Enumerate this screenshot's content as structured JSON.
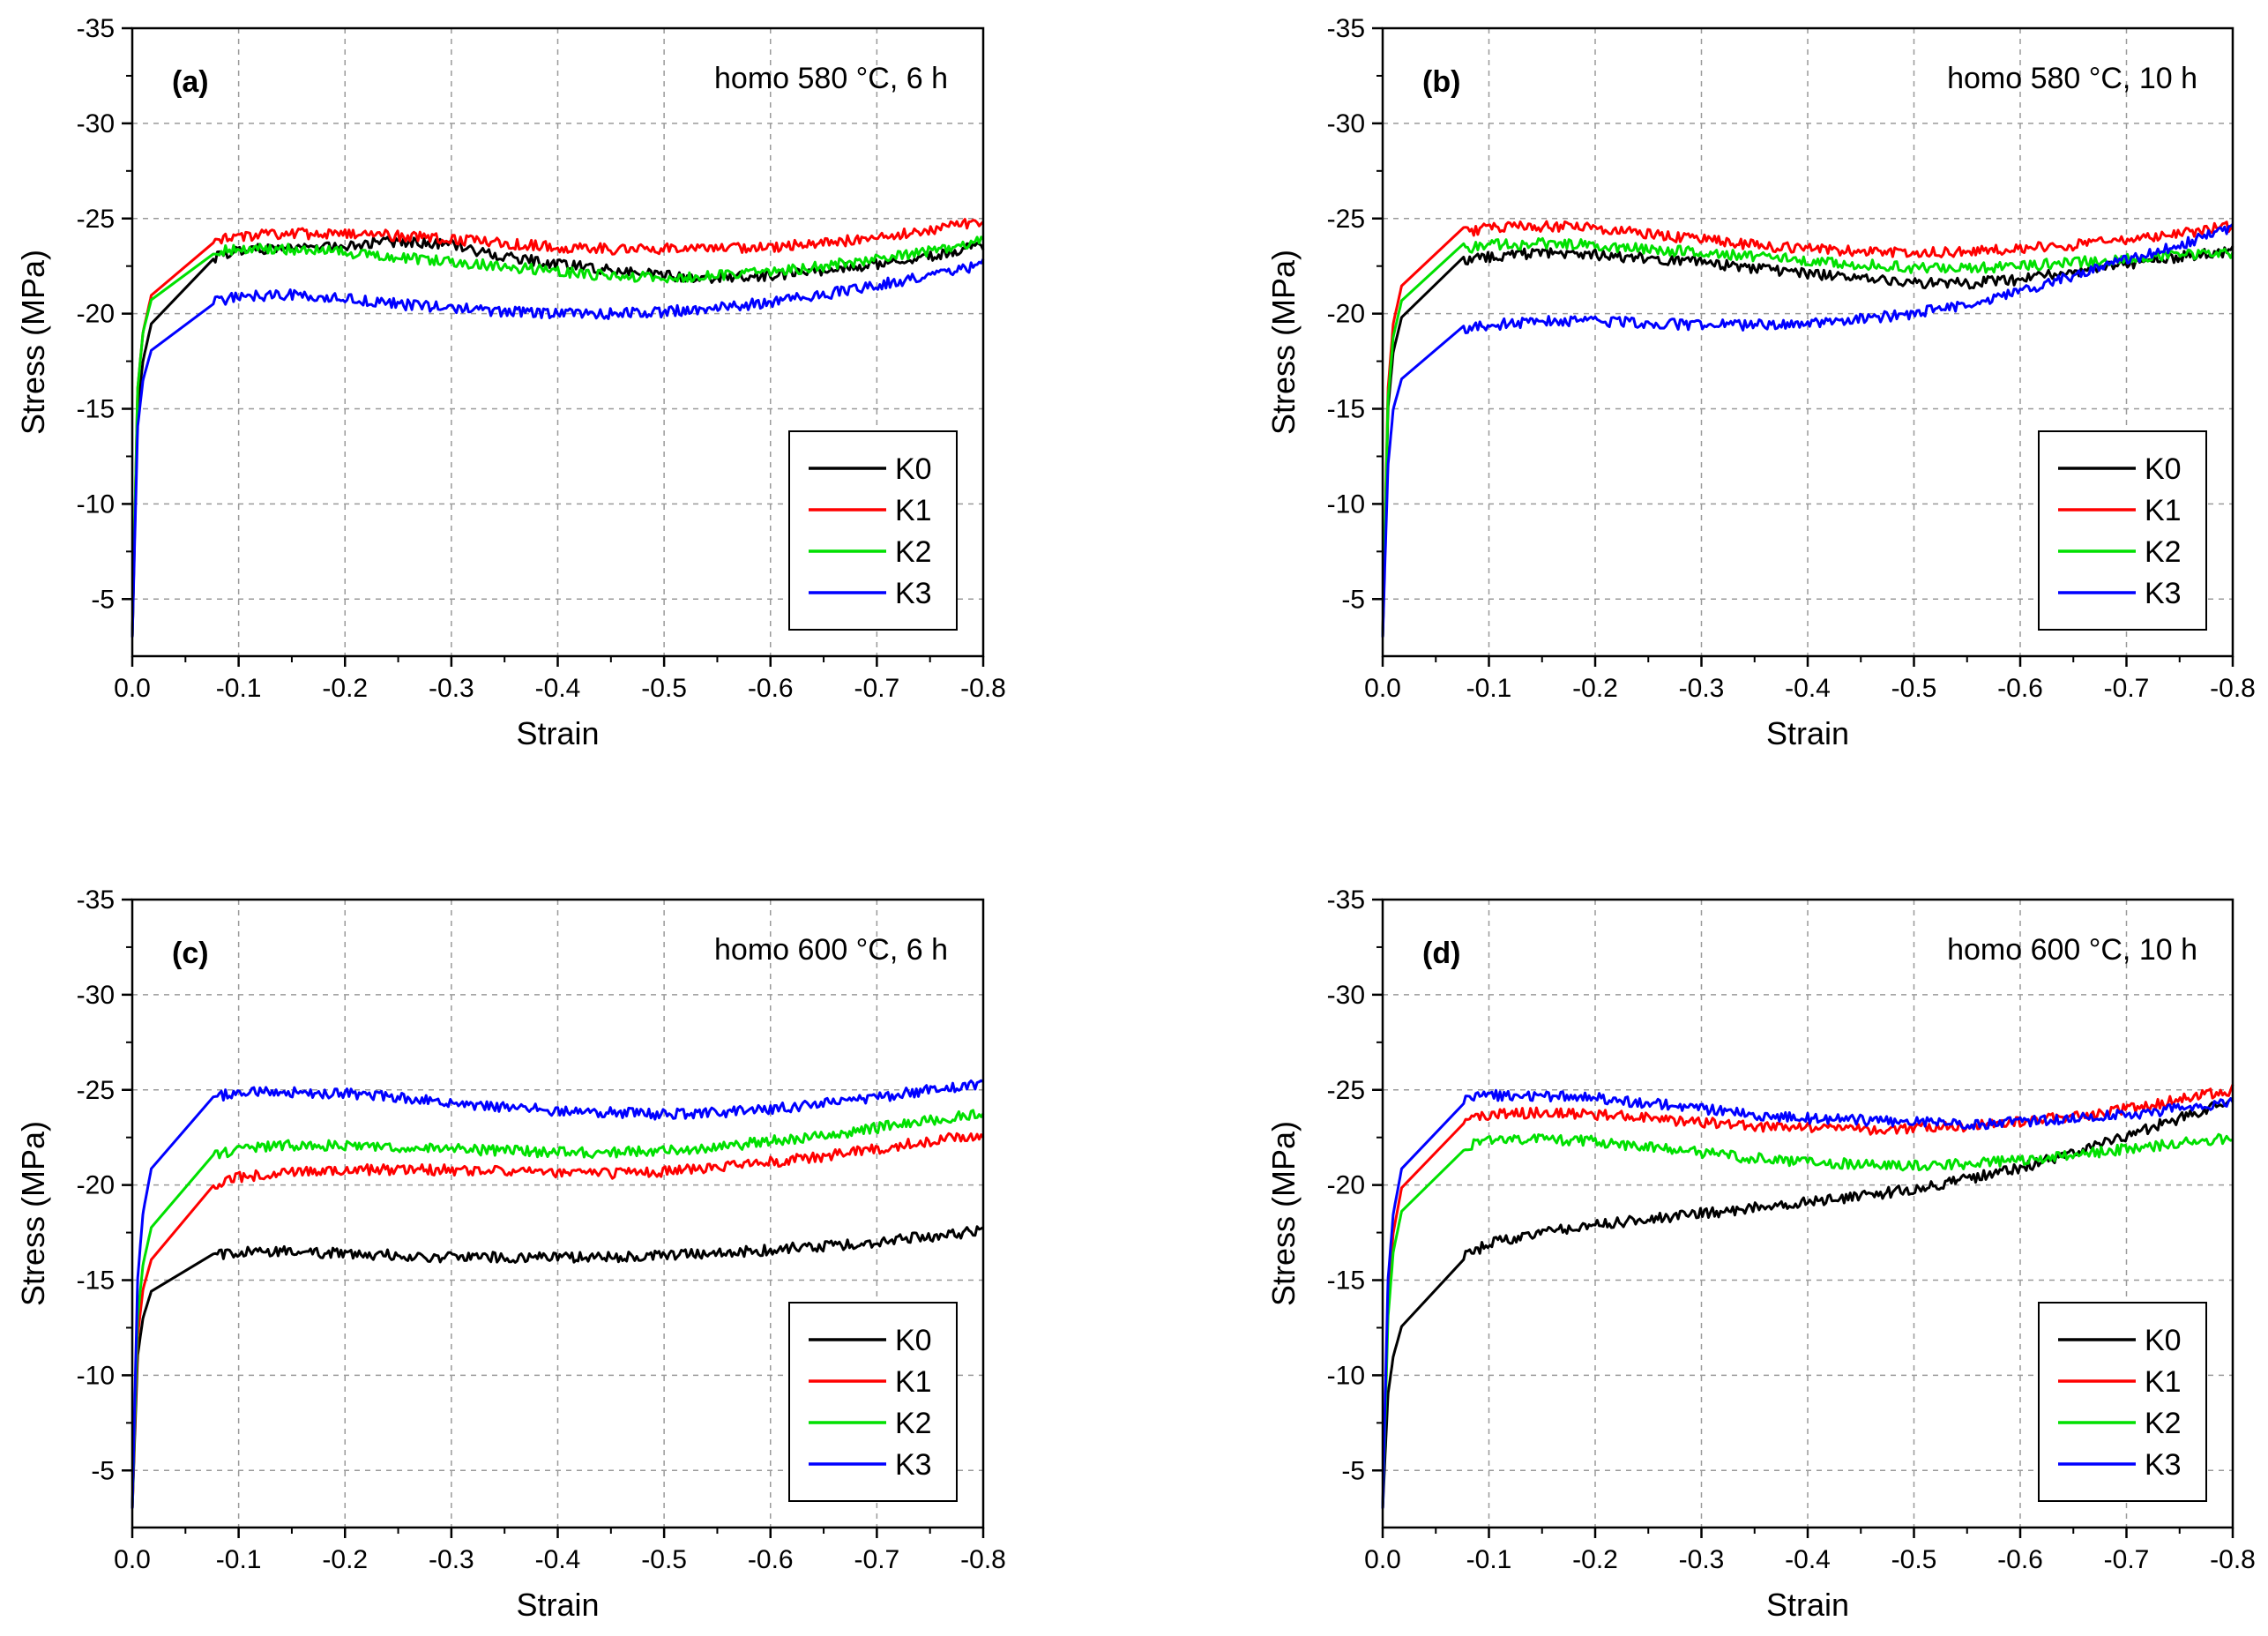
{
  "chart_data": [
    {
      "type": "line",
      "panel_label": "(a)",
      "condition": "homo 580 °C, 6 h",
      "xlabel": "Strain",
      "ylabel": "Stress (MPa)",
      "xlim": [
        0.0,
        -0.8
      ],
      "ylim": [
        -2,
        -35
      ],
      "xticks": [
        "0.0",
        "-0.1",
        "-0.2",
        "-0.3",
        "-0.4",
        "-0.5",
        "-0.6",
        "-0.7",
        "-0.8"
      ],
      "yticks": [
        "-5",
        "-10",
        "-15",
        "-20",
        "-25",
        "-30",
        "-35"
      ],
      "grid": true,
      "legend_position": "bottom-right",
      "series": [
        {
          "name": "K0",
          "color": "#000000",
          "x": [
            0,
            -0.005,
            -0.01,
            -0.02,
            -0.04,
            -0.06,
            -0.1,
            -0.15,
            -0.2,
            -0.25,
            -0.3,
            -0.35,
            -0.4,
            -0.45,
            -0.5,
            -0.55,
            -0.6,
            -0.65,
            -0.7,
            -0.75,
            -0.8
          ],
          "y": [
            -3,
            -15,
            -17.5,
            -20,
            -21.8,
            -22.7,
            -23.3,
            -23.5,
            -23.6,
            -23.8,
            -23.6,
            -23.0,
            -22.6,
            -22.3,
            -22.0,
            -21.9,
            -22.0,
            -22.3,
            -22.6,
            -23.0,
            -23.6
          ]
        },
        {
          "name": "K1",
          "color": "#ff0000",
          "x": [
            0,
            -0.005,
            -0.01,
            -0.02,
            -0.04,
            -0.06,
            -0.1,
            -0.15,
            -0.2,
            -0.25,
            -0.3,
            -0.35,
            -0.4,
            -0.45,
            -0.5,
            -0.55,
            -0.6,
            -0.65,
            -0.7,
            -0.75,
            -0.8
          ],
          "y": [
            -3,
            -16,
            -19,
            -21.5,
            -23.0,
            -23.6,
            -24.1,
            -24.2,
            -24.2,
            -24.1,
            -23.9,
            -23.7,
            -23.5,
            -23.4,
            -23.4,
            -23.4,
            -23.5,
            -23.7,
            -24.0,
            -24.4,
            -24.9
          ]
        },
        {
          "name": "K2",
          "color": "#00e000",
          "x": [
            0,
            -0.005,
            -0.01,
            -0.02,
            -0.04,
            -0.06,
            -0.1,
            -0.15,
            -0.2,
            -0.25,
            -0.3,
            -0.35,
            -0.4,
            -0.45,
            -0.5,
            -0.55,
            -0.6,
            -0.65,
            -0.7,
            -0.75,
            -0.8
          ],
          "y": [
            -3,
            -16,
            -19,
            -21.2,
            -22.6,
            -23.1,
            -23.4,
            -23.4,
            -23.2,
            -23.0,
            -22.7,
            -22.5,
            -22.2,
            -22.0,
            -21.9,
            -22.0,
            -22.2,
            -22.5,
            -22.9,
            -23.3,
            -23.8
          ]
        },
        {
          "name": "K3",
          "color": "#0000ff",
          "x": [
            0,
            -0.005,
            -0.01,
            -0.02,
            -0.04,
            -0.06,
            -0.1,
            -0.15,
            -0.2,
            -0.25,
            -0.3,
            -0.35,
            -0.4,
            -0.45,
            -0.5,
            -0.55,
            -0.6,
            -0.65,
            -0.7,
            -0.75,
            -0.8
          ],
          "y": [
            -3,
            -14,
            -16.5,
            -18.5,
            -19.8,
            -20.4,
            -20.9,
            -21.0,
            -20.8,
            -20.5,
            -20.3,
            -20.1,
            -20.0,
            -20.0,
            -20.1,
            -20.3,
            -20.6,
            -21.0,
            -21.5,
            -22.0,
            -22.6
          ]
        }
      ]
    },
    {
      "type": "line",
      "panel_label": "(b)",
      "condition": "homo 580 °C, 10 h",
      "xlabel": "Strain",
      "ylabel": "Stress (MPa)",
      "xlim": [
        0.0,
        -0.8
      ],
      "ylim": [
        -2,
        -35
      ],
      "xticks": [
        "0.0",
        "-0.1",
        "-0.2",
        "-0.3",
        "-0.4",
        "-0.5",
        "-0.6",
        "-0.7",
        "-0.8"
      ],
      "yticks": [
        "-5",
        "-10",
        "-15",
        "-20",
        "-25",
        "-30",
        "-35"
      ],
      "grid": true,
      "legend_position": "bottom-right",
      "series": [
        {
          "name": "K0",
          "color": "#000000",
          "x": [
            0,
            -0.005,
            -0.01,
            -0.02,
            -0.04,
            -0.06,
            -0.1,
            -0.15,
            -0.2,
            -0.25,
            -0.3,
            -0.35,
            -0.4,
            -0.45,
            -0.5,
            -0.55,
            -0.6,
            -0.65,
            -0.7,
            -0.75,
            -0.8
          ],
          "y": [
            -3,
            -15,
            -18,
            -20.3,
            -21.8,
            -22.5,
            -23.0,
            -23.2,
            -23.1,
            -22.9,
            -22.7,
            -22.4,
            -22.1,
            -21.8,
            -21.6,
            -21.6,
            -21.8,
            -22.2,
            -22.6,
            -23.0,
            -23.3
          ]
        },
        {
          "name": "K1",
          "color": "#ff0000",
          "x": [
            0,
            -0.005,
            -0.01,
            -0.02,
            -0.04,
            -0.06,
            -0.1,
            -0.15,
            -0.2,
            -0.25,
            -0.3,
            -0.35,
            -0.4,
            -0.45,
            -0.5,
            -0.55,
            -0.6,
            -0.65,
            -0.7,
            -0.75,
            -0.8
          ],
          "y": [
            -3,
            -16,
            -19.5,
            -22,
            -23.6,
            -24.1,
            -24.5,
            -24.6,
            -24.5,
            -24.2,
            -23.9,
            -23.6,
            -23.4,
            -23.3,
            -23.2,
            -23.3,
            -23.4,
            -23.6,
            -23.9,
            -24.2,
            -24.6
          ]
        },
        {
          "name": "K2",
          "color": "#00e000",
          "x": [
            0,
            -0.005,
            -0.01,
            -0.02,
            -0.04,
            -0.06,
            -0.1,
            -0.15,
            -0.2,
            -0.25,
            -0.3,
            -0.35,
            -0.4,
            -0.45,
            -0.5,
            -0.55,
            -0.6,
            -0.65,
            -0.7,
            -0.75,
            -0.8
          ],
          "y": [
            -3,
            -15.5,
            -18.8,
            -21.2,
            -22.8,
            -23.3,
            -23.6,
            -23.7,
            -23.6,
            -23.4,
            -23.2,
            -23.0,
            -22.8,
            -22.6,
            -22.4,
            -22.4,
            -22.5,
            -22.7,
            -22.9,
            -23.1,
            -23.2
          ]
        },
        {
          "name": "K3",
          "color": "#0000ff",
          "x": [
            0,
            -0.005,
            -0.01,
            -0.02,
            -0.04,
            -0.06,
            -0.1,
            -0.15,
            -0.2,
            -0.25,
            -0.3,
            -0.35,
            -0.4,
            -0.45,
            -0.5,
            -0.55,
            -0.6,
            -0.65,
            -0.7,
            -0.75,
            -0.8
          ],
          "y": [
            -3,
            -12,
            -15,
            -17,
            -18.3,
            -18.9,
            -19.4,
            -19.6,
            -19.6,
            -19.5,
            -19.4,
            -19.4,
            -19.5,
            -19.7,
            -20.0,
            -20.5,
            -21.2,
            -22.0,
            -22.8,
            -23.6,
            -24.5
          ]
        }
      ]
    },
    {
      "type": "line",
      "panel_label": "(c)",
      "condition": "homo 600 °C, 6 h",
      "xlabel": "Strain",
      "ylabel": "Stress (MPa)",
      "xlim": [
        0.0,
        -0.8
      ],
      "ylim": [
        -2,
        -35
      ],
      "xticks": [
        "0.0",
        "-0.1",
        "-0.2",
        "-0.3",
        "-0.4",
        "-0.5",
        "-0.6",
        "-0.7",
        "-0.8"
      ],
      "yticks": [
        "-5",
        "-10",
        "-15",
        "-20",
        "-25",
        "-30",
        "-35"
      ],
      "grid": true,
      "legend_position": "bottom-right",
      "series": [
        {
          "name": "K0",
          "color": "#000000",
          "x": [
            0,
            -0.005,
            -0.01,
            -0.02,
            -0.04,
            -0.06,
            -0.1,
            -0.15,
            -0.2,
            -0.25,
            -0.3,
            -0.35,
            -0.4,
            -0.45,
            -0.5,
            -0.55,
            -0.6,
            -0.65,
            -0.7,
            -0.75,
            -0.8
          ],
          "y": [
            -3,
            -11,
            -13,
            -14.8,
            -15.8,
            -16.2,
            -16.5,
            -16.5,
            -16.4,
            -16.3,
            -16.2,
            -16.2,
            -16.2,
            -16.2,
            -16.3,
            -16.4,
            -16.6,
            -16.8,
            -17.0,
            -17.3,
            -17.6
          ]
        },
        {
          "name": "K1",
          "color": "#ff0000",
          "x": [
            0,
            -0.005,
            -0.01,
            -0.02,
            -0.04,
            -0.06,
            -0.1,
            -0.15,
            -0.2,
            -0.25,
            -0.3,
            -0.35,
            -0.4,
            -0.45,
            -0.5,
            -0.55,
            -0.6,
            -0.65,
            -0.7,
            -0.75,
            -0.8
          ],
          "y": [
            -3,
            -12,
            -14.5,
            -16.5,
            -18.5,
            -19.6,
            -20.4,
            -20.7,
            -20.8,
            -20.8,
            -20.8,
            -20.7,
            -20.6,
            -20.6,
            -20.7,
            -20.9,
            -21.2,
            -21.5,
            -21.9,
            -22.3,
            -22.7
          ]
        },
        {
          "name": "K2",
          "color": "#00e000",
          "x": [
            0,
            -0.005,
            -0.01,
            -0.02,
            -0.04,
            -0.06,
            -0.1,
            -0.15,
            -0.2,
            -0.25,
            -0.3,
            -0.35,
            -0.4,
            -0.45,
            -0.5,
            -0.55,
            -0.6,
            -0.65,
            -0.7,
            -0.75,
            -0.8
          ],
          "y": [
            -3,
            -13,
            -15.8,
            -18.3,
            -20.4,
            -21.3,
            -21.9,
            -22.1,
            -22.1,
            -22.0,
            -21.9,
            -21.8,
            -21.7,
            -21.7,
            -21.8,
            -22.0,
            -22.3,
            -22.6,
            -23.0,
            -23.4,
            -23.8
          ]
        },
        {
          "name": "K3",
          "color": "#0000ff",
          "x": [
            0,
            -0.005,
            -0.01,
            -0.02,
            -0.04,
            -0.06,
            -0.1,
            -0.15,
            -0.2,
            -0.25,
            -0.3,
            -0.35,
            -0.4,
            -0.45,
            -0.5,
            -0.55,
            -0.6,
            -0.65,
            -0.7,
            -0.75,
            -0.8
          ],
          "y": [
            -3,
            -15,
            -18.5,
            -21.5,
            -23.5,
            -24.4,
            -24.9,
            -24.9,
            -24.8,
            -24.6,
            -24.3,
            -24.1,
            -23.9,
            -23.8,
            -23.7,
            -23.8,
            -24.0,
            -24.3,
            -24.6,
            -25.0,
            -25.3
          ]
        }
      ]
    },
    {
      "type": "line",
      "panel_label": "(d)",
      "condition": "homo 600 °C, 10 h",
      "xlabel": "Strain",
      "ylabel": "Stress (MPa)",
      "xlim": [
        0.0,
        -0.8
      ],
      "ylim": [
        -2,
        -35
      ],
      "xticks": [
        "0.0",
        "-0.1",
        "-0.2",
        "-0.3",
        "-0.4",
        "-0.5",
        "-0.6",
        "-0.7",
        "-0.8"
      ],
      "yticks": [
        "-5",
        "-10",
        "-15",
        "-20",
        "-25",
        "-30",
        "-35"
      ],
      "grid": true,
      "legend_position": "bottom-right",
      "series": [
        {
          "name": "K0",
          "color": "#000000",
          "x": [
            0,
            -0.005,
            -0.01,
            -0.02,
            -0.04,
            -0.06,
            -0.1,
            -0.15,
            -0.2,
            -0.25,
            -0.3,
            -0.35,
            -0.4,
            -0.45,
            -0.5,
            -0.55,
            -0.6,
            -0.65,
            -0.7,
            -0.75,
            -0.8
          ],
          "y": [
            -3,
            -9,
            -11,
            -13,
            -14.8,
            -15.8,
            -16.9,
            -17.5,
            -17.9,
            -18.2,
            -18.5,
            -18.8,
            -19.1,
            -19.4,
            -19.8,
            -20.3,
            -20.9,
            -21.7,
            -22.6,
            -23.5,
            -24.4
          ]
        },
        {
          "name": "K1",
          "color": "#ff0000",
          "x": [
            0,
            -0.005,
            -0.01,
            -0.02,
            -0.04,
            -0.06,
            -0.1,
            -0.15,
            -0.2,
            -0.25,
            -0.3,
            -0.35,
            -0.4,
            -0.45,
            -0.5,
            -0.55,
            -0.6,
            -0.65,
            -0.7,
            -0.75,
            -0.8
          ],
          "y": [
            -3,
            -14,
            -17.5,
            -20.5,
            -22.4,
            -23.2,
            -23.7,
            -23.8,
            -23.7,
            -23.5,
            -23.3,
            -23.1,
            -23.0,
            -22.9,
            -23.0,
            -23.1,
            -23.3,
            -23.6,
            -24.0,
            -24.5,
            -25.0
          ]
        },
        {
          "name": "K2",
          "color": "#00e000",
          "x": [
            0,
            -0.005,
            -0.01,
            -0.02,
            -0.04,
            -0.06,
            -0.1,
            -0.15,
            -0.2,
            -0.25,
            -0.3,
            -0.35,
            -0.4,
            -0.45,
            -0.5,
            -0.55,
            -0.6,
            -0.65,
            -0.7,
            -0.75,
            -0.8
          ],
          "y": [
            -3,
            -13,
            -16.5,
            -19.2,
            -21.0,
            -21.8,
            -22.3,
            -22.4,
            -22.3,
            -22.0,
            -21.7,
            -21.4,
            -21.2,
            -21.1,
            -21.0,
            -21.1,
            -21.3,
            -21.6,
            -21.9,
            -22.2,
            -22.5
          ]
        },
        {
          "name": "K3",
          "color": "#0000ff",
          "x": [
            0,
            -0.005,
            -0.01,
            -0.02,
            -0.04,
            -0.06,
            -0.1,
            -0.15,
            -0.2,
            -0.25,
            -0.3,
            -0.35,
            -0.4,
            -0.45,
            -0.5,
            -0.55,
            -0.6,
            -0.65,
            -0.7,
            -0.75,
            -0.8
          ],
          "y": [
            -3,
            -15,
            -18.5,
            -21.5,
            -23.5,
            -24.3,
            -24.7,
            -24.7,
            -24.6,
            -24.3,
            -24.0,
            -23.7,
            -23.5,
            -23.4,
            -23.3,
            -23.2,
            -23.3,
            -23.5,
            -23.7,
            -24.0,
            -24.3
          ]
        }
      ]
    }
  ]
}
